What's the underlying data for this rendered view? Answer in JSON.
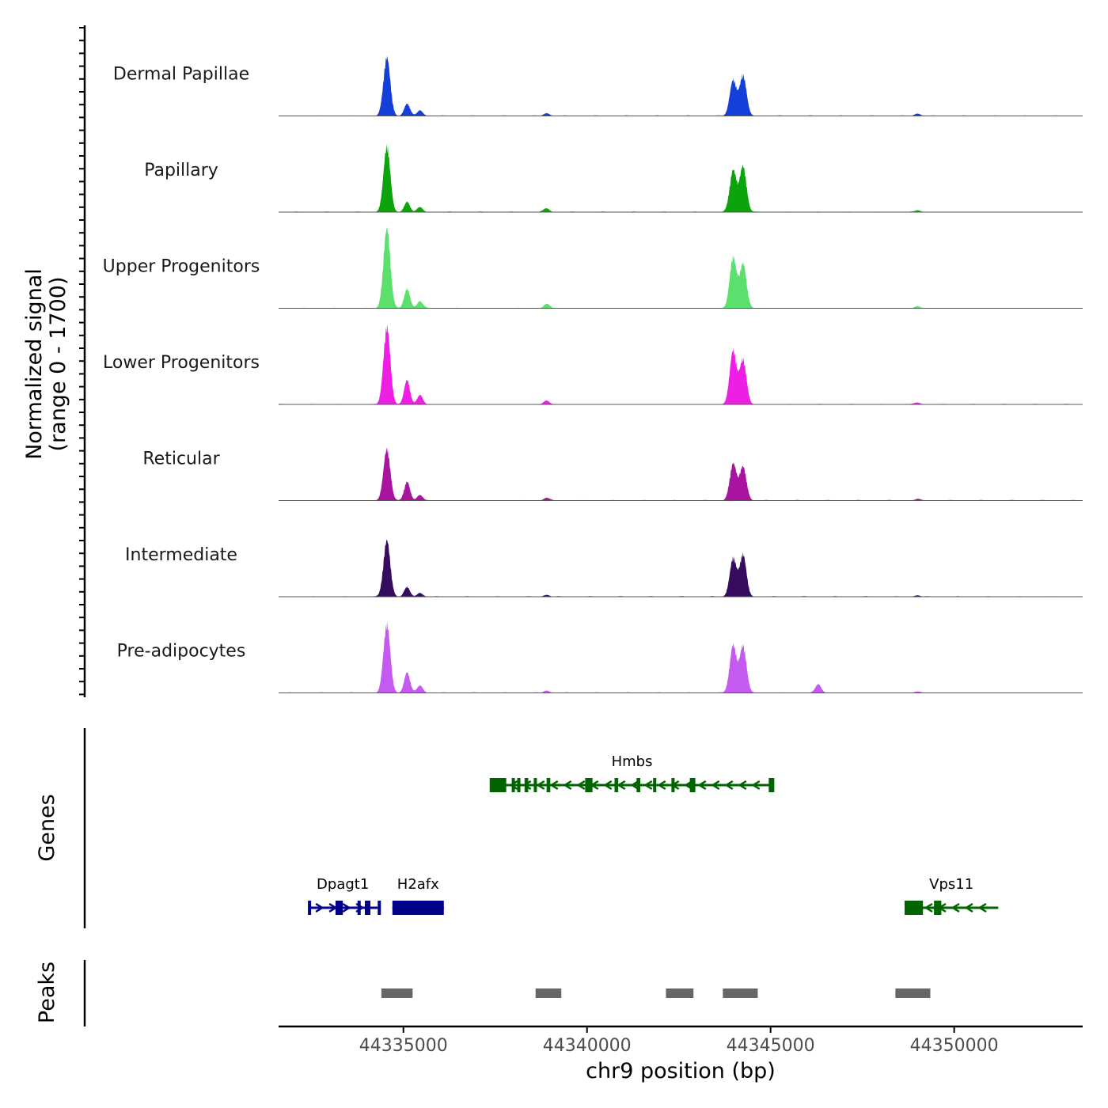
{
  "chart_data": {
    "type": "genome-browser",
    "chromosome": "chr9",
    "x_range": [
      44331600,
      44353500
    ],
    "ylabel": "Normalized signal",
    "ylabel_range": "(range 0 - 1700)",
    "y_range": [
      0,
      1700
    ],
    "xlabel": "chr9 position (bp)",
    "x_ticks": [
      {
        "value": 44335000,
        "label": "44335000"
      },
      {
        "value": 44340000,
        "label": "44340000"
      },
      {
        "value": 44345000,
        "label": "44345000"
      },
      {
        "value": 44350000,
        "label": "44350000"
      }
    ],
    "tracks": [
      {
        "name": "Dermal Papillae",
        "color": "#1440d9",
        "peaks": [
          {
            "pos": 44334550,
            "height": 1250
          },
          {
            "pos": 44335100,
            "height": 260
          },
          {
            "pos": 44335450,
            "height": 120
          },
          {
            "pos": 44338900,
            "height": 60
          },
          {
            "pos": 44343980,
            "height": 760
          },
          {
            "pos": 44344250,
            "height": 860
          },
          {
            "pos": 44349000,
            "height": 50
          }
        ]
      },
      {
        "name": "Papillary",
        "color": "#0ca30c",
        "peaks": [
          {
            "pos": 44334550,
            "height": 1390
          },
          {
            "pos": 44335100,
            "height": 220
          },
          {
            "pos": 44335450,
            "height": 100
          },
          {
            "pos": 44338900,
            "height": 80
          },
          {
            "pos": 44343980,
            "height": 890
          },
          {
            "pos": 44344250,
            "height": 970
          },
          {
            "pos": 44349000,
            "height": 40
          }
        ]
      },
      {
        "name": "Upper Progenitors",
        "color": "#5be06e",
        "peaks": [
          {
            "pos": 44334550,
            "height": 1700
          },
          {
            "pos": 44335100,
            "height": 420
          },
          {
            "pos": 44335450,
            "height": 150
          },
          {
            "pos": 44338900,
            "height": 90
          },
          {
            "pos": 44343980,
            "height": 1080
          },
          {
            "pos": 44344250,
            "height": 950
          },
          {
            "pos": 44349000,
            "height": 40
          }
        ]
      },
      {
        "name": "Lower Progenitors",
        "color": "#ee1ee4",
        "peaks": [
          {
            "pos": 44334550,
            "height": 1650
          },
          {
            "pos": 44335100,
            "height": 520
          },
          {
            "pos": 44335450,
            "height": 200
          },
          {
            "pos": 44338900,
            "height": 80
          },
          {
            "pos": 44343980,
            "height": 1140
          },
          {
            "pos": 44344250,
            "height": 950
          },
          {
            "pos": 44349000,
            "height": 40
          }
        ]
      },
      {
        "name": "Reticular",
        "color": "#a8139f",
        "peaks": [
          {
            "pos": 44334550,
            "height": 1100
          },
          {
            "pos": 44335100,
            "height": 400
          },
          {
            "pos": 44335450,
            "height": 120
          },
          {
            "pos": 44338900,
            "height": 60
          },
          {
            "pos": 44343980,
            "height": 780
          },
          {
            "pos": 44344250,
            "height": 720
          },
          {
            "pos": 44349000,
            "height": 30
          }
        ]
      },
      {
        "name": "Intermediate",
        "color": "#360d5e",
        "peaks": [
          {
            "pos": 44334550,
            "height": 1200
          },
          {
            "pos": 44335100,
            "height": 200
          },
          {
            "pos": 44335450,
            "height": 80
          },
          {
            "pos": 44338900,
            "height": 40
          },
          {
            "pos": 44343980,
            "height": 820
          },
          {
            "pos": 44344250,
            "height": 880
          },
          {
            "pos": 44349000,
            "height": 30
          }
        ]
      },
      {
        "name": "Pre-adipocytes",
        "color": "#c55af0",
        "peaks": [
          {
            "pos": 44334550,
            "height": 1460
          },
          {
            "pos": 44335100,
            "height": 440
          },
          {
            "pos": 44335450,
            "height": 160
          },
          {
            "pos": 44338900,
            "height": 50
          },
          {
            "pos": 44343980,
            "height": 1010
          },
          {
            "pos": 44344250,
            "height": 1000
          },
          {
            "pos": 44346300,
            "height": 190
          },
          {
            "pos": 44349000,
            "height": 30
          }
        ]
      }
    ],
    "genes_label": "Genes",
    "genes": [
      {
        "name": "Hmbs",
        "strand": "-",
        "row": 0,
        "color": "#006400",
        "start": 44337350,
        "end": 44345100,
        "exons": [
          [
            44337350,
            44337800
          ],
          [
            44337950,
            44338000
          ],
          [
            44338100,
            44338150
          ],
          [
            44338300,
            44338400
          ],
          [
            44338550,
            44338600
          ],
          [
            44338900,
            44339000
          ],
          [
            44339950,
            44340150
          ],
          [
            44340750,
            44340850
          ],
          [
            44341350,
            44341450
          ],
          [
            44341800,
            44341850
          ],
          [
            44342300,
            44342350
          ],
          [
            44342800,
            44342950
          ],
          [
            44344950,
            44345100
          ]
        ]
      },
      {
        "name": "Dpagt1",
        "strand": "+",
        "row": 1,
        "color": "#00008b",
        "start": 44332400,
        "end": 44334300,
        "exons": [
          [
            44332400,
            44332450
          ],
          [
            44333150,
            44333350
          ],
          [
            44333750,
            44333800
          ],
          [
            44333950,
            44334100
          ],
          [
            44334300,
            44334300
          ]
        ]
      },
      {
        "name": "H2afx",
        "strand": "+",
        "row": 1,
        "color": "#00008b",
        "start": 44334700,
        "end": 44336100,
        "exons": [
          [
            44334700,
            44336100
          ]
        ]
      },
      {
        "name": "Vps11",
        "strand": "-",
        "row": 1,
        "color": "#006400",
        "start": 44348650,
        "end": 44351200,
        "exons": [
          [
            44348650,
            44349150
          ],
          [
            44349450,
            44349650
          ]
        ]
      }
    ],
    "peaks_label": "Peaks",
    "peaks": [
      [
        44334400,
        44335250
      ],
      [
        44338600,
        44339300
      ],
      [
        44342150,
        44342900
      ],
      [
        44343700,
        44344650
      ],
      [
        44348400,
        44349350
      ]
    ]
  }
}
